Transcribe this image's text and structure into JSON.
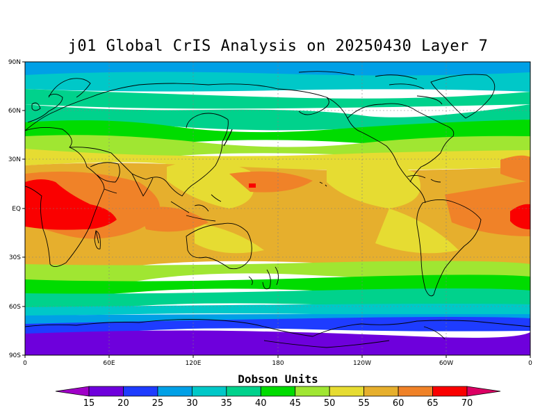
{
  "title": "j01 Global CrIS Analysis on 20250430 Layer 7",
  "map": {
    "lat_ticks": [
      "90N",
      "60N",
      "30N",
      "EQ",
      "30S",
      "60S",
      "90S"
    ],
    "lon_ticks": [
      "0",
      "60E",
      "120E",
      "180",
      "120W",
      "60W",
      "0"
    ],
    "grid": true,
    "projection": "cylindrical equidistant"
  },
  "colorbar": {
    "title": "Dobson Units",
    "levels": [
      "15",
      "20",
      "25",
      "30",
      "35",
      "40",
      "45",
      "50",
      "55",
      "60",
      "65",
      "70"
    ],
    "colors": [
      "#a000c8",
      "#6e00dc",
      "#1e3cff",
      "#00a0e6",
      "#00c8c8",
      "#00d28c",
      "#00dc00",
      "#a0e632",
      "#e6dc32",
      "#e6af2d",
      "#f08228",
      "#fa0000",
      "#dc0064"
    ]
  },
  "colors": {
    "coastline": "#000000",
    "grid": "#808080",
    "background": "#ffffff"
  }
}
